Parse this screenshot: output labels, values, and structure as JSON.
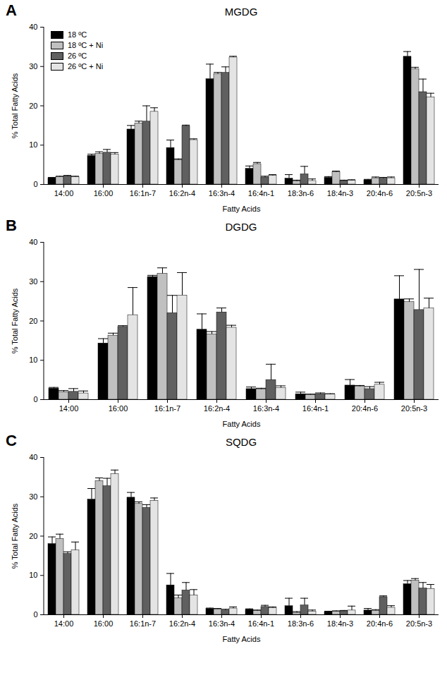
{
  "chart_data": [
    {
      "type": "bar",
      "panel_label": "A",
      "title": "MGDG",
      "x_label": "Fatty Acids",
      "y_label": "% Total Fatty Acids",
      "categories": [
        "14:00",
        "16:00",
        "16:1n-7",
        "16:2n-4",
        "16:3n-4",
        "16:4n-1",
        "18:3n-6",
        "18:4n-3",
        "20:4n-6",
        "20:5n-3"
      ],
      "series": [
        {
          "name": "18 ºC",
          "color": "#000000",
          "values": [
            1.6,
            7.3,
            14.0,
            9.3,
            26.8,
            4.0,
            1.5,
            1.7,
            1.1,
            32.5
          ],
          "errors": [
            0.2,
            0.4,
            1.0,
            2.0,
            3.8,
            0.7,
            1.0,
            0.3,
            0.2,
            1.3
          ]
        },
        {
          "name": "18 ºC + Ni",
          "color": "#c0c0c0",
          "values": [
            1.9,
            7.8,
            15.5,
            6.2,
            28.1,
            5.2,
            0.8,
            3.1,
            1.6,
            29.3
          ],
          "errors": [
            0.2,
            0.5,
            0.6,
            0.3,
            0.4,
            0.4,
            0.3,
            0.3,
            0.3,
            0.5
          ]
        },
        {
          "name": "26 ºC",
          "color": "#606060",
          "values": [
            2.1,
            8.1,
            16.0,
            14.8,
            28.4,
            1.8,
            2.6,
            0.9,
            1.5,
            23.5
          ],
          "errors": [
            0.2,
            0.8,
            4.0,
            0.3,
            1.5,
            0.3,
            2.0,
            0.2,
            0.3,
            3.3
          ]
        },
        {
          "name": "26 ºC + Ni",
          "color": "#e4e4e4",
          "values": [
            1.9,
            7.6,
            18.5,
            11.3,
            32.3,
            2.2,
            0.9,
            1.0,
            1.6,
            22.2
          ],
          "errors": [
            0.2,
            0.5,
            1.0,
            0.3,
            0.3,
            0.3,
            0.5,
            0.2,
            0.3,
            1.0
          ]
        }
      ],
      "ylim": [
        0,
        40
      ],
      "yticks": [
        0,
        10,
        20,
        30,
        40
      ],
      "grid": false,
      "legend": "top-left"
    },
    {
      "type": "bar",
      "panel_label": "B",
      "title": "DGDG",
      "x_label": "Fatty Acids",
      "y_label": "% Total Fatty Acids",
      "categories": [
        "14:00",
        "16:00",
        "16:1n-7",
        "16:2n-4",
        "16:3n-4",
        "16:4n-1",
        "20:4n-6",
        "20:5n-3"
      ],
      "series": [
        {
          "name": "18 ºC",
          "color": "#000000",
          "values": [
            2.8,
            14.3,
            31.2,
            17.8,
            2.7,
            1.4,
            3.6,
            25.5
          ],
          "errors": [
            0.3,
            1.2,
            0.4,
            4.0,
            0.5,
            0.5,
            1.5,
            6.0
          ]
        },
        {
          "name": "18 ºC + Ni",
          "color": "#c0c0c0",
          "values": [
            1.9,
            16.3,
            32.0,
            16.6,
            2.6,
            1.2,
            3.3,
            24.8
          ],
          "errors": [
            0.4,
            0.6,
            1.5,
            0.7,
            0.3,
            0.2,
            0.3,
            0.8
          ]
        },
        {
          "name": "26 ºC",
          "color": "#606060",
          "values": [
            2.0,
            18.5,
            22.0,
            22.2,
            5.0,
            1.4,
            2.7,
            22.8
          ],
          "errors": [
            0.8,
            0.3,
            4.5,
            1.1,
            4.0,
            0.3,
            0.6,
            10.3
          ]
        },
        {
          "name": "26 ºC + Ni",
          "color": "#e4e4e4",
          "values": [
            1.6,
            21.5,
            26.5,
            18.3,
            3.0,
            1.3,
            3.8,
            23.2
          ],
          "errors": [
            0.6,
            7.0,
            5.8,
            0.6,
            0.5,
            0.2,
            0.6,
            2.6
          ]
        }
      ],
      "ylim": [
        0,
        40
      ],
      "yticks": [
        0,
        10,
        20,
        30,
        40
      ],
      "grid": false
    },
    {
      "type": "bar",
      "panel_label": "C",
      "title": "SQDG",
      "x_label": "Fatty Acids",
      "y_label": "% Total Fatty Acids",
      "categories": [
        "14:00",
        "16:00",
        "16:1n-7",
        "16:2n-4",
        "16:3n-4",
        "16:4n-1",
        "18:3n-6",
        "18:4n-3",
        "20:4n-6",
        "20:5n-3"
      ],
      "series": [
        {
          "name": "18 ºC",
          "color": "#000000",
          "values": [
            18.0,
            29.3,
            29.8,
            7.5,
            1.5,
            1.3,
            2.2,
            0.7,
            1.1,
            7.8
          ],
          "errors": [
            1.8,
            2.8,
            1.3,
            3.0,
            0.2,
            0.2,
            2.0,
            0.2,
            0.5,
            0.9
          ]
        },
        {
          "name": "18 ºC + Ni",
          "color": "#c0c0c0",
          "values": [
            19.3,
            34.0,
            28.2,
            4.2,
            1.4,
            1.0,
            0.5,
            0.8,
            1.0,
            8.7
          ],
          "errors": [
            1.2,
            0.8,
            0.5,
            0.8,
            0.2,
            0.2,
            0.3,
            0.2,
            0.3,
            0.5
          ]
        },
        {
          "name": "26 ºC",
          "color": "#606060",
          "values": [
            15.5,
            32.7,
            27.2,
            6.2,
            1.1,
            2.0,
            2.4,
            0.9,
            4.5,
            6.7
          ],
          "errors": [
            0.5,
            2.0,
            0.8,
            2.0,
            0.3,
            0.4,
            1.8,
            0.2,
            0.3,
            1.5
          ]
        },
        {
          "name": "26 ºC + Ni",
          "color": "#e4e4e4",
          "values": [
            16.4,
            35.8,
            29.0,
            4.9,
            1.6,
            1.7,
            0.8,
            1.1,
            1.8,
            6.6
          ],
          "errors": [
            2.1,
            1.0,
            0.7,
            1.5,
            0.4,
            0.3,
            0.4,
            1.1,
            0.5,
            1.1
          ]
        }
      ],
      "ylim": [
        0,
        40
      ],
      "yticks": [
        0,
        10,
        20,
        30,
        40
      ],
      "grid": false
    }
  ]
}
